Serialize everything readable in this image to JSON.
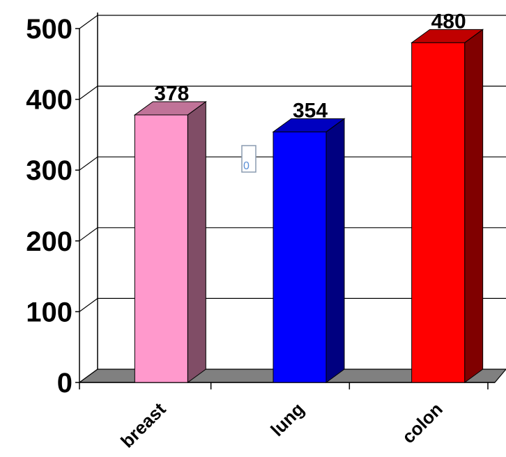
{
  "chart_data": {
    "type": "bar",
    "style": "3d",
    "categories": [
      "breast",
      "lung",
      "colon"
    ],
    "values": [
      378,
      354,
      480
    ],
    "data_labels": [
      "378",
      "354",
      "480"
    ],
    "colors": [
      {
        "front": "#ff99cc",
        "side": "#804d66",
        "top": "#c07398"
      },
      {
        "front": "#0000ff",
        "side": "#000080",
        "top": "#0000c0"
      },
      {
        "front": "#ff0000",
        "side": "#800000",
        "top": "#c00000"
      }
    ],
    "ylim": [
      0,
      500
    ],
    "yticks": [
      0,
      100,
      200,
      300,
      400,
      500
    ],
    "ytick_labels": [
      "0",
      "100",
      "200",
      "300",
      "400",
      "500"
    ],
    "grid": true,
    "floor_color": "#808080",
    "marker_text": "0",
    "title": "",
    "xlabel": "",
    "ylabel": ""
  }
}
